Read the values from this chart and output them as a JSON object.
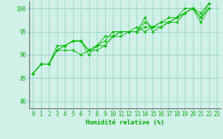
{
  "background_color": "#d0f0e8",
  "grid_color": "#88ccbb",
  "line_color": "#00bb00",
  "marker_color": "#00bb00",
  "xlabel": "Humidité relative (%)",
  "xlabel_color": "#00aa00",
  "tick_color": "#00aa00",
  "ylabel_ticks": [
    80,
    85,
    90,
    95,
    100
  ],
  "xlim": [
    -0.5,
    23.5
  ],
  "ylim": [
    78.5,
    101.5
  ],
  "series": [
    [
      86,
      88,
      88,
      91,
      92,
      93,
      93,
      90,
      92,
      92,
      94,
      95,
      95,
      95,
      98,
      95,
      96,
      97,
      98,
      100,
      100,
      98,
      101
    ],
    [
      86,
      88,
      88,
      92,
      92,
      93,
      93,
      91,
      92,
      93,
      95,
      95,
      95,
      96,
      95,
      96,
      97,
      98,
      98,
      99,
      100,
      99,
      101
    ],
    [
      86,
      88,
      88,
      91,
      92,
      93,
      93,
      91,
      91,
      92,
      94,
      94,
      95,
      95,
      97,
      96,
      97,
      97,
      98,
      99,
      100,
      98,
      100
    ],
    [
      86,
      88,
      88,
      91,
      91,
      91,
      90,
      91,
      92,
      94,
      94,
      95,
      95,
      95,
      96,
      96,
      96,
      97,
      97,
      99,
      100,
      97,
      100
    ]
  ]
}
